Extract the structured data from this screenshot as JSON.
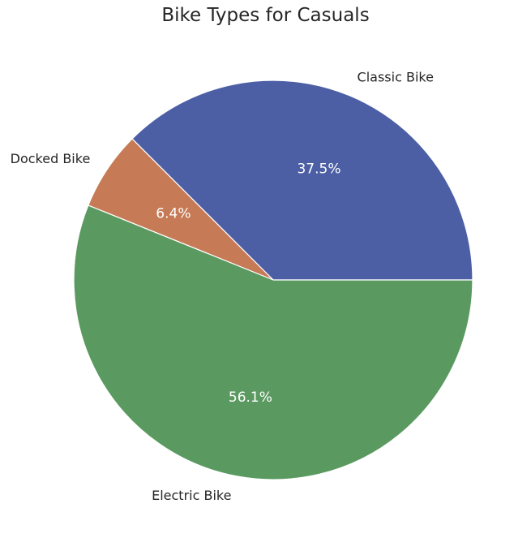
{
  "chart_data": {
    "type": "pie",
    "title": "Bike Types for Casuals",
    "slices": [
      {
        "label": "Classic Bike",
        "value": 37.5,
        "pct_label": "37.5%",
        "color": "#4c5fa5"
      },
      {
        "label": "Docked Bike",
        "value": 6.4,
        "pct_label": "6.4%",
        "color": "#c67a55"
      },
      {
        "label": "Electric Bike",
        "value": 56.1,
        "pct_label": "56.1%",
        "color": "#5a9a60"
      }
    ],
    "start_angle_deg": 0,
    "direction": "counterclockwise",
    "wedge_edge_color": "#ffffff",
    "label_color": "#262626",
    "pct_color": "#ffffff",
    "legend": "none"
  }
}
